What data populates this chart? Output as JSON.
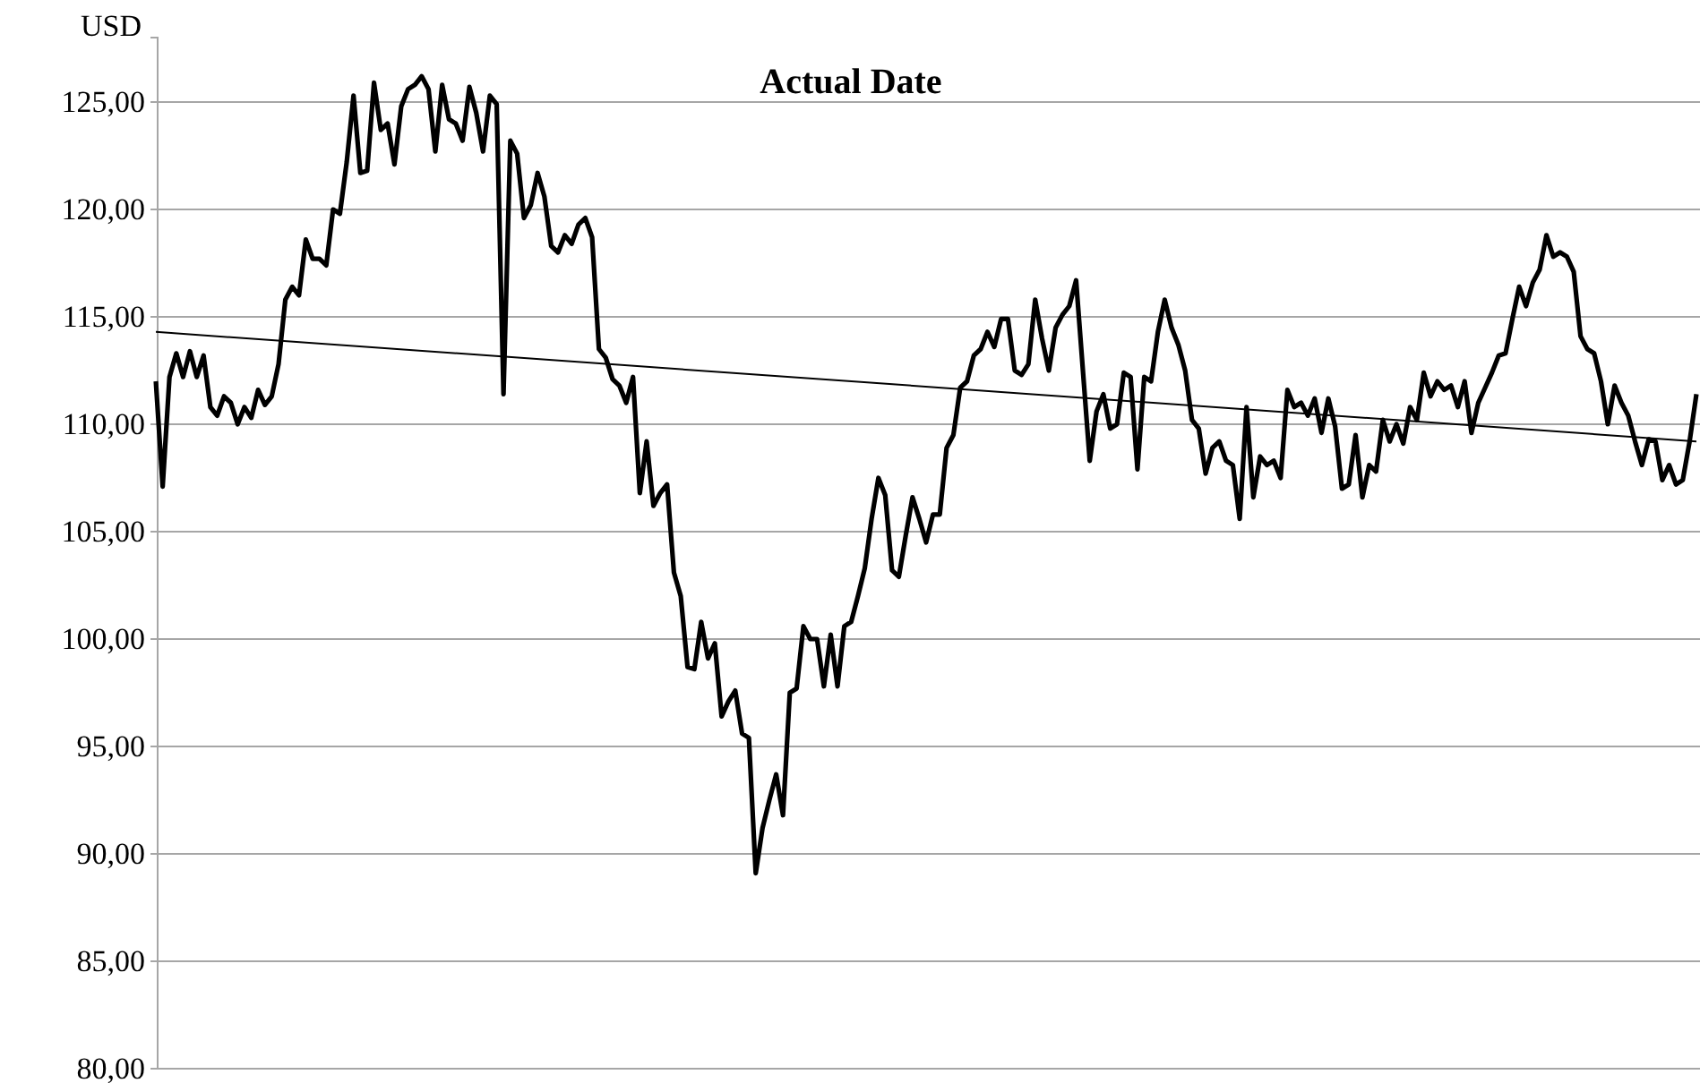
{
  "chart_data": {
    "type": "line",
    "title": "Actual Date",
    "ylabel": "USD",
    "categories": [
      null,
      null,
      null,
      null,
      null,
      null,
      null,
      null,
      null,
      null,
      null,
      null,
      null,
      null,
      null,
      null,
      null,
      null,
      null,
      null,
      null,
      null,
      null,
      null,
      null,
      null,
      null,
      null,
      null,
      null,
      null,
      null,
      null,
      null,
      null,
      null,
      null,
      null,
      null,
      null,
      null,
      null,
      null,
      null,
      null,
      null,
      null,
      null,
      null,
      null,
      null,
      null,
      null,
      null,
      null,
      null,
      null,
      null,
      null,
      null,
      null,
      null,
      null,
      null,
      null,
      null,
      null,
      null,
      null,
      null,
      null,
      null,
      null,
      null,
      null,
      null,
      null,
      null,
      null,
      null,
      null,
      null,
      null,
      null,
      null,
      null,
      null,
      null,
      null,
      null,
      null,
      null,
      null,
      null,
      null,
      null,
      null,
      null,
      null,
      null,
      null,
      null,
      null,
      null,
      null,
      null,
      null,
      null,
      null,
      null,
      null,
      null,
      null,
      null,
      null,
      null,
      null,
      null,
      null,
      null,
      null,
      null,
      null,
      null,
      null,
      null,
      null,
      null,
      null,
      null,
      null,
      null,
      null,
      null,
      null,
      null,
      null,
      null,
      null,
      null,
      null,
      null,
      null,
      null,
      null,
      null,
      null,
      null,
      null,
      null,
      null,
      null,
      null,
      null,
      null,
      null,
      null,
      null,
      null,
      null,
      null,
      null,
      null,
      null,
      null,
      null,
      null,
      null,
      null,
      null,
      null,
      null,
      null,
      null,
      null,
      null,
      null,
      null,
      null,
      null,
      null,
      null,
      null,
      null,
      null,
      null,
      null,
      null,
      null,
      null,
      null,
      null,
      null,
      null,
      null,
      null,
      null,
      null,
      null,
      null,
      null,
      null,
      null,
      null,
      null,
      null,
      null,
      null,
      null,
      null,
      null,
      null,
      null,
      null,
      null,
      null,
      null,
      null,
      null,
      null,
      null,
      null,
      null,
      null,
      null,
      null,
      null
    ],
    "series": [
      {
        "color": "#000000",
        "line_style": "solid",
        "values": [
          112.0,
          107.1,
          112.2,
          113.3,
          112.2,
          113.4,
          112.2,
          113.2,
          110.8,
          110.4,
          111.3,
          111.0,
          110.0,
          110.8,
          110.3,
          111.6,
          110.9,
          111.3,
          112.8,
          115.8,
          116.4,
          116.0,
          118.6,
          117.7,
          117.7,
          117.4,
          120.0,
          119.8,
          122.2,
          125.3,
          121.7,
          121.8,
          125.9,
          123.7,
          124.0,
          122.1,
          124.8,
          125.6,
          125.8,
          126.2,
          125.6,
          122.7,
          125.8,
          124.2,
          124.0,
          123.2,
          125.7,
          124.5,
          122.7,
          125.3,
          124.9,
          111.4,
          123.2,
          122.6,
          119.6,
          120.2,
          121.7,
          120.6,
          118.3,
          118.0,
          118.8,
          118.4,
          119.3,
          119.6,
          118.7,
          113.5,
          113.1,
          112.1,
          111.8,
          111.0,
          112.2,
          106.8,
          109.2,
          106.2,
          106.8,
          107.2,
          103.1,
          102.0,
          98.7,
          98.6,
          100.8,
          99.1,
          99.8,
          96.4,
          97.1,
          97.6,
          95.6,
          95.4,
          89.1,
          91.2,
          92.5,
          93.7,
          91.8,
          97.5,
          97.7,
          100.6,
          100.0,
          100.0,
          97.8,
          100.2,
          97.8,
          100.6,
          100.8,
          102.0,
          103.3,
          105.6,
          107.5,
          106.7,
          103.2,
          102.9,
          104.8,
          106.6,
          105.6,
          104.5,
          105.8,
          105.8,
          108.9,
          109.5,
          111.7,
          112.0,
          113.2,
          113.5,
          114.3,
          113.6,
          114.9,
          114.9,
          112.5,
          112.3,
          112.8,
          115.8,
          114.0,
          112.5,
          114.5,
          115.1,
          115.5,
          116.7,
          112.5,
          108.3,
          110.6,
          111.4,
          109.8,
          110.0,
          112.4,
          112.2,
          107.9,
          112.2,
          112.0,
          114.3,
          115.8,
          114.5,
          113.7,
          112.5,
          110.2,
          109.8,
          107.7,
          108.9,
          109.2,
          108.3,
          108.1,
          105.6,
          110.8,
          106.6,
          108.5,
          108.1,
          108.3,
          107.5,
          111.6,
          110.8,
          111.0,
          110.4,
          111.2,
          109.6,
          111.2,
          109.9,
          107.0,
          107.2,
          109.5,
          106.6,
          108.1,
          107.8,
          110.2,
          109.2,
          110.0,
          109.1,
          110.8,
          110.2,
          112.4,
          111.3,
          112.0,
          111.6,
          111.8,
          110.8,
          112.0,
          109.6,
          111.0,
          111.7,
          112.4,
          113.2,
          113.3,
          114.9,
          116.4,
          115.5,
          116.6,
          117.2,
          118.8,
          117.8,
          118.0,
          117.8,
          117.1,
          114.1,
          113.5,
          113.3,
          112.0,
          110.0,
          111.8,
          111.0,
          110.4,
          109.2,
          108.1,
          109.3,
          109.2,
          107.4,
          108.1,
          107.2,
          107.4,
          109.2,
          111.4
        ]
      },
      {
        "type": "line",
        "color": "#000000",
        "line_style": "solid",
        "values": [
          114.3,
          null,
          null,
          null,
          null,
          null,
          null,
          null,
          null,
          null,
          null,
          null,
          null,
          null,
          null,
          null,
          null,
          null,
          null,
          null,
          null,
          null,
          null,
          null,
          null,
          null,
          null,
          null,
          null,
          null,
          null,
          null,
          null,
          null,
          null,
          null,
          null,
          null,
          null,
          null,
          null,
          null,
          null,
          null,
          null,
          null,
          null,
          null,
          null,
          null,
          null,
          null,
          null,
          null,
          null,
          null,
          null,
          null,
          null,
          null,
          null,
          null,
          null,
          null,
          null,
          null,
          null,
          null,
          null,
          null,
          null,
          null,
          null,
          null,
          null,
          null,
          null,
          null,
          null,
          null,
          null,
          null,
          null,
          null,
          null,
          null,
          null,
          null,
          null,
          null,
          null,
          null,
          null,
          null,
          null,
          null,
          null,
          null,
          null,
          null,
          null,
          null,
          null,
          null,
          null,
          null,
          null,
          null,
          null,
          null,
          null,
          null,
          null,
          null,
          null,
          null,
          null,
          null,
          null,
          null,
          null,
          null,
          null,
          null,
          null,
          null,
          null,
          null,
          null,
          null,
          null,
          null,
          null,
          null,
          null,
          null,
          null,
          null,
          null,
          null,
          null,
          null,
          null,
          null,
          null,
          null,
          null,
          null,
          null,
          null,
          null,
          null,
          null,
          null,
          null,
          null,
          null,
          null,
          null,
          null,
          null,
          null,
          null,
          null,
          null,
          null,
          null,
          null,
          null,
          null,
          null,
          null,
          null,
          null,
          null,
          null,
          null,
          null,
          null,
          null,
          null,
          null,
          null,
          null,
          null,
          null,
          null,
          null,
          null,
          null,
          null,
          null,
          null,
          null,
          null,
          null,
          null,
          null,
          null,
          null,
          null,
          null,
          null,
          null,
          null,
          null,
          null,
          null,
          null,
          null,
          null,
          null,
          null,
          null,
          null,
          null,
          null,
          null,
          null,
          null,
          null,
          null,
          null,
          null,
          null,
          null,
          109.2
        ]
      }
    ],
    "ylim": [
      80,
      128
    ],
    "yticks": [
      {
        "value": 80,
        "label": "80,00"
      },
      {
        "value": 85,
        "label": "85,00"
      },
      {
        "value": 90,
        "label": "90,00"
      },
      {
        "value": 95,
        "label": "95,00"
      },
      {
        "value": 100,
        "label": "100,00"
      },
      {
        "value": 105,
        "label": "105,00"
      },
      {
        "value": 110,
        "label": "110,00"
      },
      {
        "value": 115,
        "label": "115,00"
      },
      {
        "value": 120,
        "label": "120,00"
      },
      {
        "value": 125,
        "label": "125,00"
      }
    ],
    "grid": "y",
    "tick_labels": "y",
    "marker": "none"
  }
}
